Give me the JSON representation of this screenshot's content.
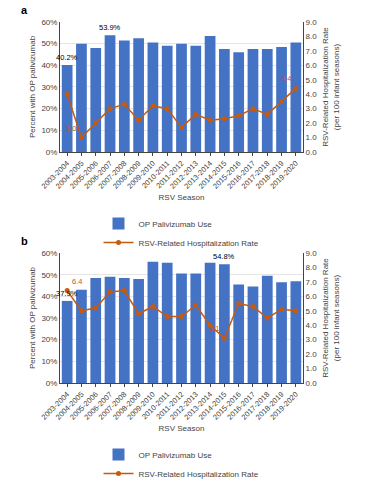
{
  "chart_data": [
    {
      "type": "bar",
      "title": "a",
      "categories": [
        "2003-2004",
        "2004-2005",
        "2005-2006",
        "2006-2007",
        "2007-2008",
        "2008-2009",
        "2009-2010",
        "2010-2011",
        "2011-2012",
        "2012-2013",
        "2013-2014",
        "2014-2015",
        "2015-2016",
        "2016-2017",
        "2017-2018",
        "2018-2019",
        "2019-2020"
      ],
      "series": [
        {
          "name": "OP Palivizumab Use",
          "color": "#4472C4",
          "values": [
            40.2,
            50.0,
            48.0,
            53.9,
            51.5,
            52.5,
            50.5,
            49.0,
            50.0,
            49.0,
            53.5,
            47.5,
            46.0,
            47.5,
            47.5,
            48.5,
            50.5
          ]
        },
        {
          "name": "RSV-Related Hospitalization Rate",
          "type": "line",
          "axis": "y2",
          "color": "#C55A11",
          "marker": "o",
          "values": [
            4.0,
            1.0,
            2.0,
            3.0,
            3.3,
            2.2,
            3.2,
            3.0,
            1.7,
            2.6,
            2.2,
            2.3,
            2.5,
            3.0,
            2.6,
            3.5,
            4.4
          ]
        }
      ],
      "xlabel": "RSV Season",
      "ylabel": "Percent with OP palivizumab",
      "y2label": "RSV-Related Hospitalization Rate\n(per 100 infant seasons)",
      "ylim": [
        0,
        60
      ],
      "yticks": [
        {
          "value": 0,
          "label": "0%"
        },
        {
          "value": 10,
          "label": "10%"
        },
        {
          "value": 20,
          "label": "20%"
        },
        {
          "value": 30,
          "label": "30%"
        },
        {
          "value": 40,
          "label": "40%"
        },
        {
          "value": 50,
          "label": "50%"
        },
        {
          "value": 60,
          "label": "60%"
        }
      ],
      "y2lim": [
        0,
        9.0
      ],
      "y2ticks": [
        {
          "value": 0.0,
          "label": "0.0"
        },
        {
          "value": 1.0,
          "label": "1.0"
        },
        {
          "value": 2.0,
          "label": "2.0"
        },
        {
          "value": 3.0,
          "label": "3.0"
        },
        {
          "value": 4.0,
          "label": "4.0"
        },
        {
          "value": 5.0,
          "label": "5.0"
        },
        {
          "value": 6.0,
          "label": "6.0"
        },
        {
          "value": 7.0,
          "label": "7.0"
        },
        {
          "value": 8.0,
          "label": "8.0"
        },
        {
          "value": 9.0,
          "label": "9.0"
        }
      ],
      "grid": true,
      "legend": "bottom",
      "annotations": [
        {
          "series": "OP Palivizumab Use",
          "category": "2003-2004",
          "text": "40.2%"
        },
        {
          "series": "OP Palivizumab Use",
          "category": "2006-2007",
          "text": "53.9%"
        },
        {
          "series": "RSV-Related Hospitalization Rate",
          "category": "2004-2005",
          "text": "1.0"
        },
        {
          "series": "RSV-Related Hospitalization Rate",
          "category": "2019-2020",
          "text": "4.4"
        }
      ]
    },
    {
      "type": "bar",
      "title": "b",
      "categories": [
        "2003-2004",
        "2004-2005",
        "2005-2006",
        "2006-2007",
        "2007-2008",
        "2008-2009",
        "2009-2010",
        "2010-2011",
        "2011-2012",
        "2012-2013",
        "2013-2014",
        "2014-2015",
        "2015-2016",
        "2016-2017",
        "2017-2018",
        "2018-2019",
        "2019-2020"
      ],
      "series": [
        {
          "name": "OP Palivizumab Use",
          "color": "#4472C4",
          "values": [
            37.9,
            43.0,
            48.5,
            49.0,
            48.5,
            48.0,
            56.0,
            55.5,
            50.5,
            50.5,
            55.5,
            54.8,
            45.5,
            44.5,
            49.5,
            46.5,
            47.0
          ]
        },
        {
          "name": "RSV-Related Hospitalization Rate",
          "type": "line",
          "axis": "y2",
          "color": "#C55A11",
          "marker": "o",
          "values": [
            6.4,
            5.0,
            5.2,
            6.3,
            6.4,
            4.8,
            5.3,
            4.6,
            4.6,
            5.4,
            4.0,
            3.1,
            5.5,
            5.3,
            4.5,
            5.1,
            5.0
          ]
        }
      ],
      "xlabel": "RSV Season",
      "ylabel": "Percent with OP palivizumab",
      "y2label": "RSV-Related Hospitalization Rate\n(per 100 infant seasons)",
      "ylim": [
        0,
        60
      ],
      "yticks": [
        {
          "value": 0,
          "label": "0%"
        },
        {
          "value": 10,
          "label": "10%"
        },
        {
          "value": 20,
          "label": "20%"
        },
        {
          "value": 30,
          "label": "30%"
        },
        {
          "value": 40,
          "label": "40%"
        },
        {
          "value": 50,
          "label": "50%"
        },
        {
          "value": 60,
          "label": "60%"
        }
      ],
      "y2lim": [
        0,
        9.0
      ],
      "y2ticks": [
        {
          "value": 0.0,
          "label": "0.0"
        },
        {
          "value": 1.0,
          "label": "1.0"
        },
        {
          "value": 2.0,
          "label": "2.0"
        },
        {
          "value": 3.0,
          "label": "3.0"
        },
        {
          "value": 4.0,
          "label": "4.0"
        },
        {
          "value": 5.0,
          "label": "5.0"
        },
        {
          "value": 6.0,
          "label": "6.0"
        },
        {
          "value": 7.0,
          "label": "7.0"
        },
        {
          "value": 8.0,
          "label": "8.0"
        },
        {
          "value": 9.0,
          "label": "9.0"
        }
      ],
      "grid": true,
      "legend": "bottom",
      "annotations": [
        {
          "series": "OP Palivizumab Use",
          "category": "2003-2004",
          "text": "37.9%"
        },
        {
          "series": "OP Palivizumab Use",
          "category": "2014-2015",
          "text": "54.8%"
        },
        {
          "series": "RSV-Related Hospitalization Rate",
          "category": "2003-2004",
          "text": "6.4"
        },
        {
          "series": "RSV-Related Hospitalization Rate",
          "category": "2014-2015",
          "text": "3.1"
        }
      ]
    }
  ]
}
